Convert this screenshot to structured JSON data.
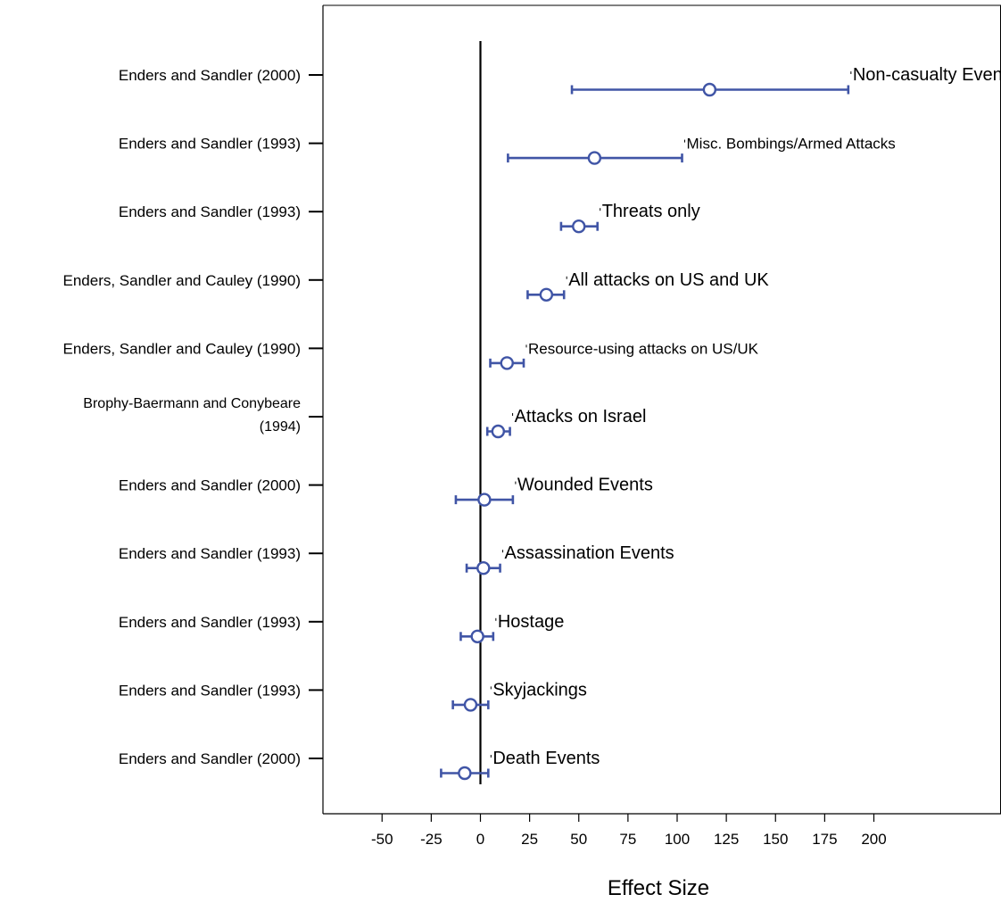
{
  "chart_data": {
    "type": "forest",
    "xlabel": "Effect Size",
    "xlim": [
      -65,
      210
    ],
    "xticks": [
      -50,
      -25,
      0,
      25,
      50,
      75,
      100,
      125,
      150,
      175,
      200
    ],
    "reference_line": 0,
    "marker_color": "#4055a6",
    "rows": [
      {
        "study": "Enders and Sandler (2000)",
        "outcome": "Non-casualty Events",
        "estimate": 116.5,
        "ci_low": 46.5,
        "ci_high": 187
      },
      {
        "study": "Enders and Sandler (1993)",
        "outcome": "Misc. Bombings/Armed Attacks",
        "estimate": 58,
        "ci_low": 14,
        "ci_high": 102.5
      },
      {
        "study": "Enders and Sandler (1993)",
        "outcome": "Threats only",
        "estimate": 50,
        "ci_low": 41,
        "ci_high": 59.5
      },
      {
        "study": "Enders, Sandler and Cauley (1990)",
        "outcome": "All attacks on US and UK",
        "estimate": 33.5,
        "ci_low": 24,
        "ci_high": 42.5
      },
      {
        "study": "Enders, Sandler and Cauley (1990)",
        "outcome": "Resource-using attacks on US/UK",
        "estimate": 13.5,
        "ci_low": 5,
        "ci_high": 22
      },
      {
        "study": "Brophy-Baermann and Conybeare (1994)",
        "study_lines": [
          "Brophy-Baermann and Conybeare",
          "(1994)"
        ],
        "outcome": "Attacks on Israel",
        "estimate": 9,
        "ci_low": 3.5,
        "ci_high": 15
      },
      {
        "study": "Enders and Sandler (2000)",
        "outcome": "Wounded Events",
        "estimate": 2,
        "ci_low": -12.5,
        "ci_high": 16.5
      },
      {
        "study": "Enders and Sandler (1993)",
        "outcome": "Assassination Events",
        "estimate": 1.5,
        "ci_low": -7,
        "ci_high": 10
      },
      {
        "study": "Enders and Sandler (1993)",
        "outcome": "Hostage",
        "estimate": -1.5,
        "ci_low": -10,
        "ci_high": 6.5
      },
      {
        "study": "Enders and Sandler (1993)",
        "outcome": "Skyjackings",
        "estimate": -5,
        "ci_low": -14,
        "ci_high": 4
      },
      {
        "study": "Enders and Sandler (2000)",
        "outcome": "Death Events",
        "estimate": -8,
        "ci_low": -20,
        "ci_high": 4
      }
    ]
  }
}
